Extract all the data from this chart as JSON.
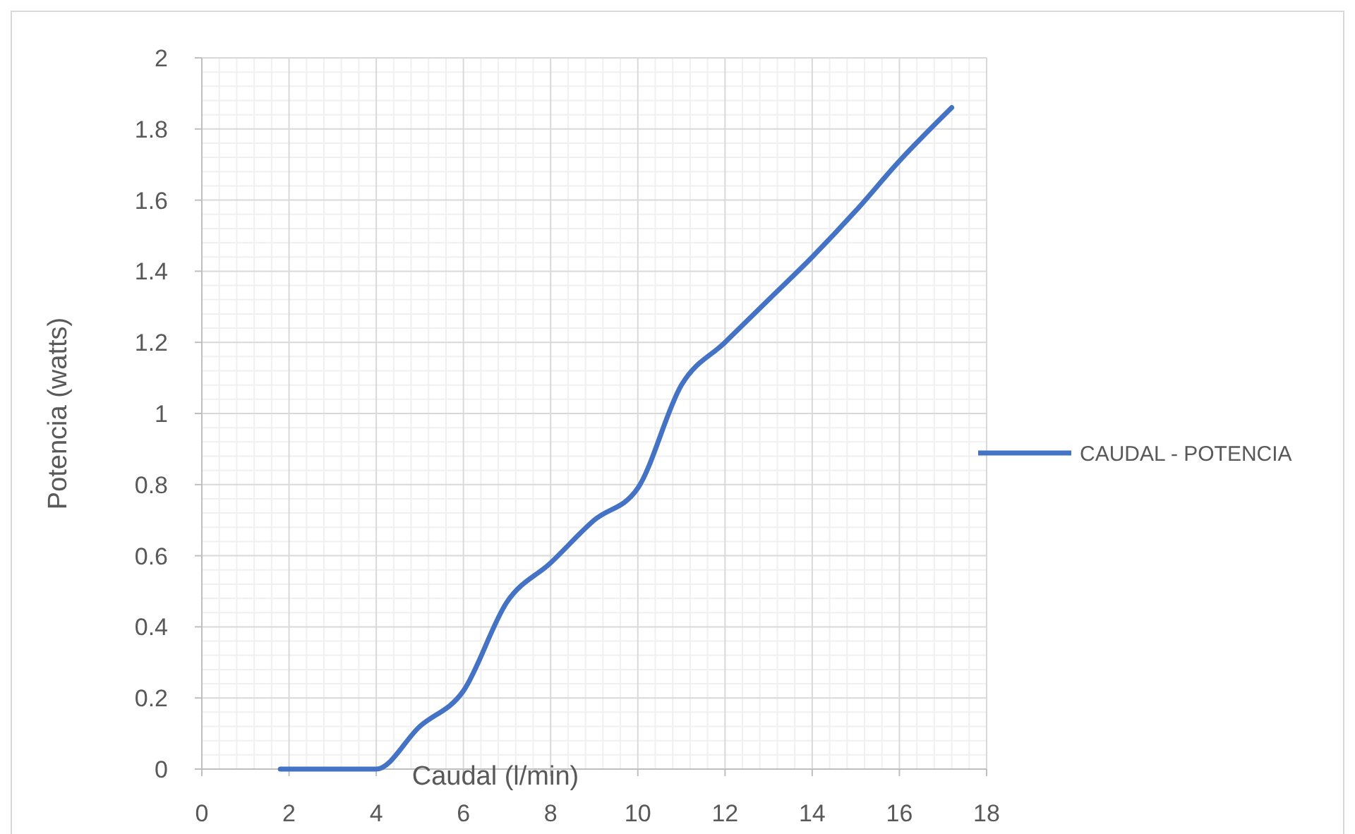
{
  "chart_data": {
    "type": "line",
    "xlabel": "Caudal (l/min)",
    "ylabel": "Potencia (watts)",
    "x": [
      1.8,
      3.3,
      4,
      5,
      6,
      7,
      8,
      9,
      10,
      11,
      12,
      13,
      14,
      15,
      16,
      17.2
    ],
    "series": [
      {
        "name": "CAUDAL - POTENCIA",
        "color": "#4472c4",
        "values": [
          0,
          0,
          0,
          0.12,
          0.22,
          0.47,
          0.58,
          0.7,
          0.79,
          1.08,
          1.2,
          1.32,
          1.44,
          1.57,
          1.71,
          1.86
        ]
      }
    ],
    "xlim": [
      0,
      18
    ],
    "xticks": [
      0,
      2,
      4,
      6,
      8,
      10,
      12,
      14,
      16,
      18
    ],
    "ylim": [
      0,
      2
    ],
    "yticks": [
      0,
      {
        "value": 0.2,
        "label": "0.2"
      },
      {
        "value": 0.4,
        "label": "0.4"
      },
      {
        "value": 0.6,
        "label": "0.6"
      },
      {
        "value": 0.8,
        "label": "0.8"
      },
      1,
      {
        "value": 1.2,
        "label": "1.2"
      },
      {
        "value": 1.4,
        "label": "1.4"
      },
      {
        "value": 1.6,
        "label": "1.6"
      },
      {
        "value": 1.8,
        "label": "1.8"
      },
      2
    ],
    "grid": true,
    "legend": "right",
    "line_style": "solid",
    "marker": "none"
  }
}
